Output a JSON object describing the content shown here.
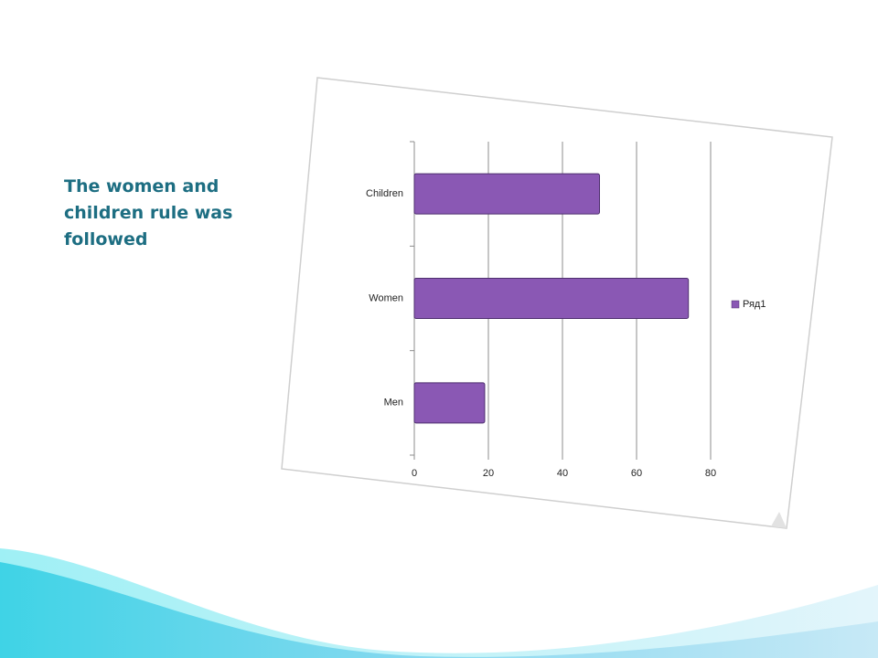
{
  "title": "The women and children rule was followed",
  "chart_data": {
    "type": "bar",
    "orientation": "horizontal",
    "categories": [
      "Men",
      "Women",
      "Children"
    ],
    "series": [
      {
        "name": "Ряд1",
        "color": "#8a58b4",
        "values": [
          19,
          74,
          50
        ]
      }
    ],
    "xlim": [
      0,
      80
    ],
    "xticks": [
      0,
      20,
      40,
      60,
      80
    ],
    "grid": true,
    "legend": "right"
  }
}
